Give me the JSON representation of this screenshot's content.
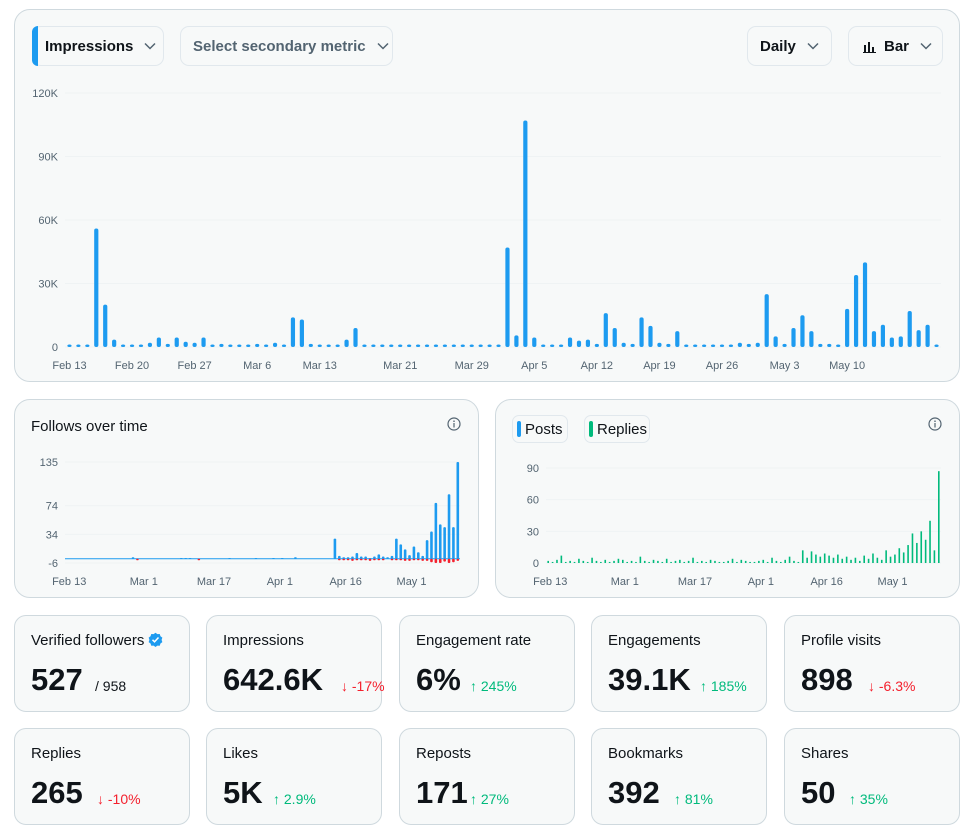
{
  "controls": {
    "primary_metric": "Impressions",
    "secondary_metric_placeholder": "Select secondary metric",
    "interval": "Daily",
    "chart_type": "Bar"
  },
  "main_chart": {
    "y_ticks": [
      "120K",
      "90K",
      "60K",
      "30K",
      "0"
    ],
    "x_ticks": [
      "Feb 13",
      "Feb 20",
      "Feb 27",
      "Mar 6",
      "Mar 13",
      "Mar 21",
      "Mar 29",
      "Apr 5",
      "Apr 12",
      "Apr 19",
      "Apr 26",
      "May 3",
      "May 10"
    ]
  },
  "follows_chart": {
    "title": "Follows over time",
    "y_ticks": [
      "135",
      "74",
      "34",
      "-6"
    ],
    "x_ticks": [
      "Feb 13",
      "Mar 1",
      "Mar 17",
      "Apr 1",
      "Apr 16",
      "May 1"
    ]
  },
  "posts_chart": {
    "legend": [
      "Posts",
      "Replies"
    ],
    "y_ticks": [
      "90",
      "60",
      "30",
      "0"
    ],
    "x_ticks": [
      "Feb 13",
      "Mar 1",
      "Mar 17",
      "Apr 1",
      "Apr 16",
      "May 1"
    ]
  },
  "colors": {
    "accent": "#1d9bf0",
    "replies": "#00ba7c",
    "negative": "#f4212e"
  },
  "stats": [
    {
      "label": "Verified followers",
      "value": "527",
      "sub": "/ 958",
      "delta": "",
      "dir": ""
    },
    {
      "label": "Impressions",
      "value": "642.6K",
      "sub": "",
      "delta": "-17%",
      "dir": "down"
    },
    {
      "label": "Engagement rate",
      "value": "6%",
      "sub": "",
      "delta": "245%",
      "dir": "up"
    },
    {
      "label": "Engagements",
      "value": "39.1K",
      "sub": "",
      "delta": "185%",
      "dir": "up"
    },
    {
      "label": "Profile visits",
      "value": "898",
      "sub": "",
      "delta": "-6.3%",
      "dir": "down"
    },
    {
      "label": "Replies",
      "value": "265",
      "sub": "",
      "delta": "-10%",
      "dir": "down"
    },
    {
      "label": "Likes",
      "value": "5K",
      "sub": "",
      "delta": "2.9%",
      "dir": "up"
    },
    {
      "label": "Reposts",
      "value": "171",
      "sub": "",
      "delta": "27%",
      "dir": "up"
    },
    {
      "label": "Bookmarks",
      "value": "392",
      "sub": "",
      "delta": "81%",
      "dir": "up"
    },
    {
      "label": "Shares",
      "value": "50",
      "sub": "",
      "delta": "35%",
      "dir": "up"
    }
  ],
  "chart_data": [
    {
      "type": "bar",
      "title": "",
      "xlabel": "",
      "ylabel": "",
      "ylim": [
        0,
        120000
      ],
      "x_start": "Feb 13",
      "x_end": "May 14",
      "series": [
        {
          "name": "Impressions",
          "values": [
            700,
            700,
            700,
            56000,
            20000,
            3500,
            700,
            700,
            700,
            2000,
            4500,
            1500,
            4500,
            2500,
            2000,
            4500,
            700,
            1500,
            700,
            700,
            700,
            1500,
            700,
            2000,
            700,
            14000,
            13000,
            1500,
            1000,
            700,
            1000,
            3500,
            9000,
            700,
            1000,
            700,
            700,
            700,
            700,
            700,
            700,
            700,
            700,
            700,
            700,
            700,
            700,
            700,
            700,
            47000,
            5500,
            107000,
            4500,
            700,
            700,
            700,
            4500,
            3000,
            3500,
            1500,
            16000,
            9000,
            2000,
            1500,
            14000,
            10000,
            2000,
            1500,
            7500,
            700,
            700,
            700,
            1000,
            700,
            700,
            2000,
            1500,
            2000,
            25000,
            5000,
            1500,
            9000,
            15000,
            7500,
            1500,
            1500,
            1000,
            18000,
            34000,
            40000,
            7500,
            10500,
            4500,
            5000,
            17000,
            8000,
            10500,
            700
          ]
        }
      ],
      "grid": true,
      "legend": "none"
    },
    {
      "type": "bar",
      "title": "Follows over time",
      "ylim": [
        -6,
        135
      ],
      "x_start": "Feb 13",
      "x_end": "May 14",
      "series": [
        {
          "name": "Follows",
          "values": [
            0,
            0,
            0,
            0,
            0,
            0,
            0,
            0,
            0,
            0,
            0,
            0,
            0,
            0,
            0,
            2,
            0,
            0,
            0,
            0,
            0,
            0,
            0,
            0,
            0,
            0,
            1,
            1,
            1,
            0,
            0,
            0,
            0,
            0,
            0,
            0,
            0,
            1,
            0,
            0,
            0,
            0,
            0,
            1,
            0,
            0,
            0,
            1,
            0,
            1,
            0,
            0,
            2,
            0,
            0,
            0,
            0,
            0,
            0,
            0,
            0,
            28,
            4,
            2,
            2,
            3,
            8,
            3,
            3,
            1,
            3,
            6,
            3,
            2,
            4,
            28,
            20,
            13,
            5,
            17,
            9,
            4,
            26,
            38,
            78,
            48,
            44,
            90,
            44,
            135
          ]
        },
        {
          "name": "Unfollows",
          "values": [
            0,
            0,
            0,
            0,
            0,
            0,
            0,
            0,
            0,
            0,
            0,
            0,
            0,
            0,
            0,
            0,
            -1,
            0,
            0,
            0,
            0,
            0,
            0,
            0,
            0,
            0,
            0,
            0,
            0,
            0,
            -1,
            0,
            0,
            0,
            0,
            0,
            0,
            0,
            0,
            0,
            0,
            0,
            0,
            0,
            0,
            0,
            0,
            0,
            0,
            0,
            0,
            0,
            0,
            0,
            0,
            0,
            0,
            0,
            0,
            0,
            0,
            0,
            -1,
            -2,
            -2,
            -3,
            -2,
            -1,
            -2,
            -3,
            -1,
            -1,
            -1,
            0,
            -2,
            -2,
            -1,
            -3,
            -3,
            -1,
            -2,
            -3,
            -3,
            -5,
            -6,
            -6,
            -4,
            -6,
            -5,
            -3
          ]
        }
      ]
    },
    {
      "type": "bar",
      "title": "",
      "ylim": [
        0,
        90
      ],
      "x_start": "Feb 13",
      "x_end": "May 14",
      "series": [
        {
          "name": "Posts",
          "values": [
            0,
            0,
            0,
            0,
            0,
            0,
            0,
            0,
            0,
            0,
            0,
            0,
            0,
            0,
            0,
            0,
            0,
            0,
            0,
            0,
            0,
            0,
            0,
            0,
            0,
            0,
            0,
            0,
            0,
            0,
            0,
            0,
            0,
            0,
            0,
            0,
            0,
            0,
            0,
            0,
            0,
            0,
            0,
            0,
            0,
            0,
            0,
            0,
            0,
            0,
            0,
            0,
            0,
            0,
            0,
            0,
            0,
            0,
            0,
            0,
            0,
            0,
            0,
            0,
            0,
            0,
            0,
            0,
            0,
            0,
            0,
            0,
            0,
            0,
            0,
            0,
            0,
            0,
            0,
            0,
            0,
            0,
            0,
            0,
            0,
            0,
            0,
            0,
            0,
            0
          ]
        },
        {
          "name": "Replies",
          "values": [
            2,
            1,
            3,
            7,
            1,
            2,
            1,
            4,
            2,
            1,
            5,
            2,
            1,
            3,
            1,
            2,
            4,
            3,
            1,
            2,
            1,
            6,
            2,
            1,
            3,
            2,
            1,
            4,
            1,
            2,
            3,
            1,
            2,
            5,
            1,
            2,
            1,
            3,
            2,
            1,
            1,
            2,
            4,
            1,
            3,
            2,
            1,
            1,
            2,
            3,
            1,
            5,
            2,
            1,
            3,
            6,
            2,
            1,
            12,
            5,
            11,
            8,
            6,
            9,
            7,
            5,
            8,
            4,
            6,
            3,
            5,
            2,
            7,
            4,
            9,
            5,
            3,
            12,
            6,
            8,
            14,
            10,
            17,
            28,
            19,
            30,
            22,
            40,
            12,
            87
          ]
        }
      ]
    }
  ]
}
